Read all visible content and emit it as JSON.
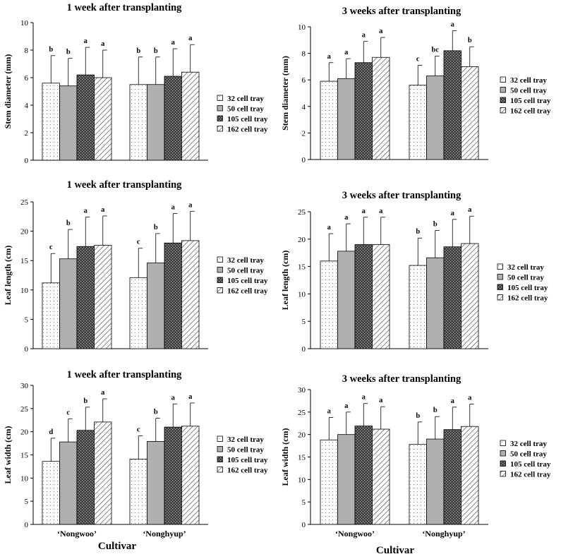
{
  "colors": {
    "axis": "#000000",
    "bar_stroke": "#000000",
    "fill_50": "#b0b0b0",
    "fill_105": "#3c3c3c"
  },
  "series_styles": [
    "dots",
    "solid-gray",
    "dark-check",
    "diagonal"
  ],
  "legend": [
    "32 cell tray",
    "50 cell tray",
    "105 cell tray",
    "162 cell tray"
  ],
  "x_title": "Cultivar",
  "chart_data": [
    {
      "type": "bar",
      "title": "1 week after transplanting",
      "ylabel": "Stem diameter (mm)",
      "ylim": [
        0,
        10
      ],
      "yticks": [
        0,
        2,
        4,
        6,
        8,
        10
      ],
      "categories": [
        "",
        ""
      ],
      "series": [
        {
          "name": "32 cell tray",
          "values": [
            5.6,
            5.5
          ],
          "errors": [
            2.0,
            2.0
          ],
          "letters": [
            "b",
            "b"
          ]
        },
        {
          "name": "50 cell tray",
          "values": [
            5.4,
            5.5
          ],
          "errors": [
            2.0,
            2.0
          ],
          "letters": [
            "b",
            "b"
          ]
        },
        {
          "name": "105 cell tray",
          "values": [
            6.2,
            6.1
          ],
          "errors": [
            2.0,
            2.0
          ],
          "letters": [
            "a",
            "a"
          ]
        },
        {
          "name": "162 cell tray",
          "values": [
            6.0,
            6.4
          ],
          "errors": [
            2.0,
            2.0
          ],
          "letters": [
            "a",
            "a"
          ]
        }
      ]
    },
    {
      "type": "bar",
      "title": "3 weeks after transplanting",
      "ylabel": "Stem diameter (mm)",
      "ylim": [
        0,
        10
      ],
      "yticks": [
        0,
        2,
        4,
        6,
        8,
        10
      ],
      "categories": [
        "",
        ""
      ],
      "series": [
        {
          "name": "32 cell tray",
          "values": [
            5.9,
            5.6
          ],
          "errors": [
            1.4,
            1.5
          ],
          "letters": [
            "a",
            "c"
          ]
        },
        {
          "name": "50 cell tray",
          "values": [
            6.1,
            6.3
          ],
          "errors": [
            1.5,
            1.5
          ],
          "letters": [
            "a",
            "bc"
          ]
        },
        {
          "name": "105 cell tray",
          "values": [
            7.3,
            8.2
          ],
          "errors": [
            1.6,
            1.5
          ],
          "letters": [
            "a",
            "a"
          ]
        },
        {
          "name": "162 cell tray",
          "values": [
            7.7,
            7.0
          ],
          "errors": [
            1.5,
            1.5
          ],
          "letters": [
            "a",
            "b"
          ]
        }
      ]
    },
    {
      "type": "bar",
      "title": "1 week after transplanting",
      "ylabel": "Leaf length (cm)",
      "ylim": [
        0,
        25
      ],
      "yticks": [
        0,
        5,
        10,
        15,
        20,
        25
      ],
      "categories": [
        "",
        ""
      ],
      "series": [
        {
          "name": "32 cell tray",
          "values": [
            11.2,
            12.1
          ],
          "errors": [
            5.0,
            5.0
          ],
          "letters": [
            "c",
            "c"
          ]
        },
        {
          "name": "50 cell tray",
          "values": [
            15.3,
            14.6
          ],
          "errors": [
            5.0,
            5.0
          ],
          "letters": [
            "b",
            "b"
          ]
        },
        {
          "name": "105 cell tray",
          "values": [
            17.4,
            18.0
          ],
          "errors": [
            5.0,
            5.0
          ],
          "letters": [
            "a",
            "a"
          ]
        },
        {
          "name": "162 cell tray",
          "values": [
            17.6,
            18.4
          ],
          "errors": [
            5.0,
            5.0
          ],
          "letters": [
            "a",
            "a"
          ]
        }
      ]
    },
    {
      "type": "bar",
      "title": "3 weeks after transplanting",
      "ylabel": "Leaf length (cm)",
      "ylim": [
        0,
        25
      ],
      "yticks": [
        0,
        5,
        10,
        15,
        20,
        25
      ],
      "categories": [
        "",
        ""
      ],
      "series": [
        {
          "name": "32 cell tray",
          "values": [
            16.0,
            15.2
          ],
          "errors": [
            5.0,
            5.0
          ],
          "letters": [
            "a",
            "b"
          ]
        },
        {
          "name": "50 cell tray",
          "values": [
            17.8,
            16.6
          ],
          "errors": [
            5.0,
            5.0
          ],
          "letters": [
            "a",
            "b"
          ]
        },
        {
          "name": "105 cell tray",
          "values": [
            19.0,
            18.6
          ],
          "errors": [
            5.0,
            5.0
          ],
          "letters": [
            "a",
            "a"
          ]
        },
        {
          "name": "162 cell tray",
          "values": [
            19.0,
            19.2
          ],
          "errors": [
            5.0,
            5.0
          ],
          "letters": [
            "a",
            "a"
          ]
        }
      ]
    },
    {
      "type": "bar",
      "title": "1 week after transplanting",
      "ylabel": "Leaf width (cm)",
      "ylim": [
        0,
        30
      ],
      "yticks": [
        0,
        5,
        10,
        15,
        20,
        25,
        30
      ],
      "categories": [
        "‘Nongwoo’",
        "‘Nonghyup’"
      ],
      "series": [
        {
          "name": "32 cell tray",
          "values": [
            13.6,
            14.1
          ],
          "errors": [
            5.0,
            5.0
          ],
          "letters": [
            "d",
            "c"
          ]
        },
        {
          "name": "50 cell tray",
          "values": [
            17.8,
            17.9
          ],
          "errors": [
            5.0,
            5.0
          ],
          "letters": [
            "c",
            "b"
          ]
        },
        {
          "name": "105 cell tray",
          "values": [
            20.3,
            21.0
          ],
          "errors": [
            5.0,
            5.0
          ],
          "letters": [
            "b",
            "a"
          ]
        },
        {
          "name": "162 cell tray",
          "values": [
            22.1,
            21.2
          ],
          "errors": [
            5.0,
            5.0
          ],
          "letters": [
            "a",
            "a"
          ]
        }
      ]
    },
    {
      "type": "bar",
      "title": "3 weeks after transplanting",
      "ylabel": "Leaf width (cm)",
      "ylim": [
        0,
        30
      ],
      "yticks": [
        0,
        5,
        10,
        15,
        20,
        25,
        30
      ],
      "categories": [
        "‘Nongwoo’",
        "‘Nonghyup’"
      ],
      "series": [
        {
          "name": "32 cell tray",
          "values": [
            18.8,
            17.8
          ],
          "errors": [
            5.0,
            5.0
          ],
          "letters": [
            "a",
            "b"
          ]
        },
        {
          "name": "50 cell tray",
          "values": [
            20.0,
            19.0
          ],
          "errors": [
            5.0,
            5.0
          ],
          "letters": [
            "a",
            "b"
          ]
        },
        {
          "name": "105 cell tray",
          "values": [
            21.9,
            21.1
          ],
          "errors": [
            5.0,
            5.0
          ],
          "letters": [
            "a",
            "a"
          ]
        },
        {
          "name": "162 cell tray",
          "values": [
            21.2,
            21.8
          ],
          "errors": [
            5.0,
            5.0
          ],
          "letters": [
            "a",
            "a"
          ]
        }
      ]
    }
  ]
}
